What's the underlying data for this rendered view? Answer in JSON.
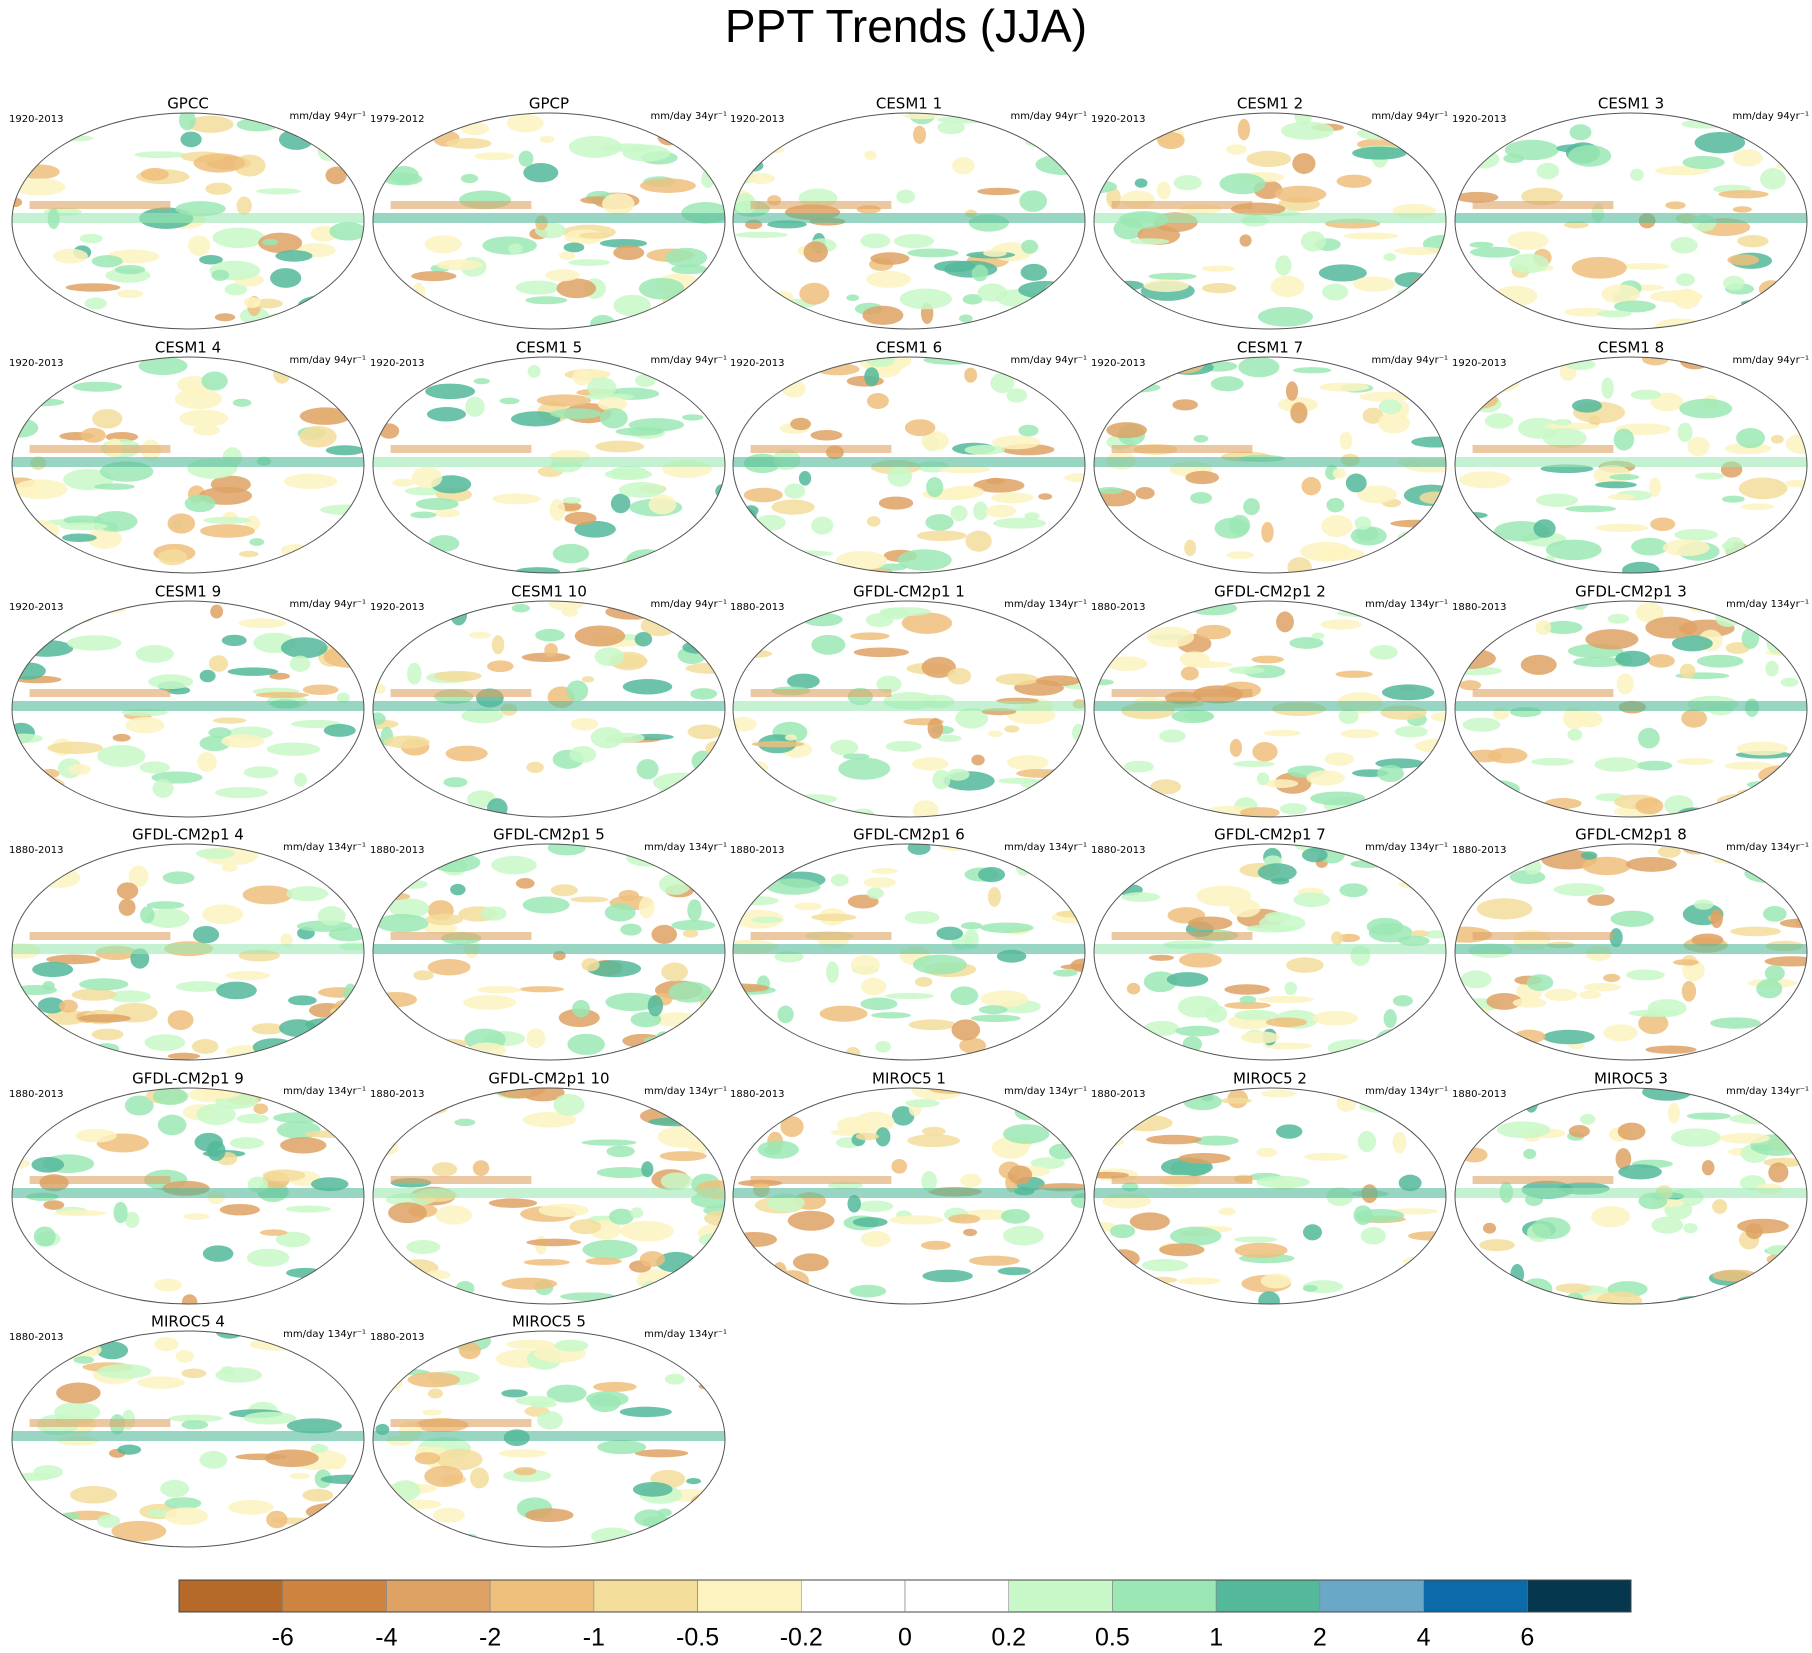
{
  "title": "PPT Trends (JJA)",
  "panels": [
    {
      "title": "GPCC",
      "period": "1920-2013",
      "units": "mm/day 94yr⁻¹"
    },
    {
      "title": "GPCP",
      "period": "1979-2012",
      "units": "mm/day 34yr⁻¹"
    },
    {
      "title": "CESM1 1",
      "period": "1920-2013",
      "units": "mm/day 94yr⁻¹"
    },
    {
      "title": "CESM1 2",
      "period": "1920-2013",
      "units": "mm/day 94yr⁻¹"
    },
    {
      "title": "CESM1 3",
      "period": "1920-2013",
      "units": "mm/day 94yr⁻¹"
    },
    {
      "title": "CESM1 4",
      "period": "1920-2013",
      "units": "mm/day 94yr⁻¹"
    },
    {
      "title": "CESM1 5",
      "period": "1920-2013",
      "units": "mm/day 94yr⁻¹"
    },
    {
      "title": "CESM1 6",
      "period": "1920-2013",
      "units": "mm/day 94yr⁻¹"
    },
    {
      "title": "CESM1 7",
      "period": "1920-2013",
      "units": "mm/day 94yr⁻¹"
    },
    {
      "title": "CESM1 8",
      "period": "1920-2013",
      "units": "mm/day 94yr⁻¹"
    },
    {
      "title": "CESM1 9",
      "period": "1920-2013",
      "units": "mm/day 94yr⁻¹"
    },
    {
      "title": "CESM1 10",
      "period": "1920-2013",
      "units": "mm/day 94yr⁻¹"
    },
    {
      "title": "GFDL-CM2p1 1",
      "period": "1880-2013",
      "units": "mm/day 134yr⁻¹"
    },
    {
      "title": "GFDL-CM2p1 2",
      "period": "1880-2013",
      "units": "mm/day 134yr⁻¹"
    },
    {
      "title": "GFDL-CM2p1 3",
      "period": "1880-2013",
      "units": "mm/day 134yr⁻¹"
    },
    {
      "title": "GFDL-CM2p1 4",
      "period": "1880-2013",
      "units": "mm/day 134yr⁻¹"
    },
    {
      "title": "GFDL-CM2p1 5",
      "period": "1880-2013",
      "units": "mm/day 134yr⁻¹"
    },
    {
      "title": "GFDL-CM2p1 6",
      "period": "1880-2013",
      "units": "mm/day 134yr⁻¹"
    },
    {
      "title": "GFDL-CM2p1 7",
      "period": "1880-2013",
      "units": "mm/day 134yr⁻¹"
    },
    {
      "title": "GFDL-CM2p1 8",
      "period": "1880-2013",
      "units": "mm/day 134yr⁻¹"
    },
    {
      "title": "GFDL-CM2p1 9",
      "period": "1880-2013",
      "units": "mm/day 134yr⁻¹"
    },
    {
      "title": "GFDL-CM2p1 10",
      "period": "1880-2013",
      "units": "mm/day 134yr⁻¹"
    },
    {
      "title": "MIROC5 1",
      "period": "1880-2013",
      "units": "mm/day 134yr⁻¹"
    },
    {
      "title": "MIROC5 2",
      "period": "1880-2013",
      "units": "mm/day 134yr⁻¹"
    },
    {
      "title": "MIROC5 3",
      "period": "1880-2013",
      "units": "mm/day 134yr⁻¹"
    },
    {
      "title": "MIROC5 4",
      "period": "1880-2013",
      "units": "mm/day 134yr⁻¹"
    },
    {
      "title": "MIROC5 5",
      "period": "1880-2013",
      "units": "mm/day 134yr⁻¹"
    }
  ],
  "colorbar": {
    "colors": [
      "#b56a2a",
      "#cc843f",
      "#dea264",
      "#eec07c",
      "#f3dd9b",
      "#fdf3c1",
      "#ffffff",
      "#ffffff",
      "#c8f8c8",
      "#9be8b4",
      "#53b99a",
      "#6aa8c8",
      "#0b6aa8",
      "#05384f"
    ],
    "ticks": [
      -6,
      -4,
      -2,
      -1,
      -0.5,
      -0.2,
      0,
      0.2,
      0.5,
      1,
      2,
      4,
      6
    ]
  }
}
